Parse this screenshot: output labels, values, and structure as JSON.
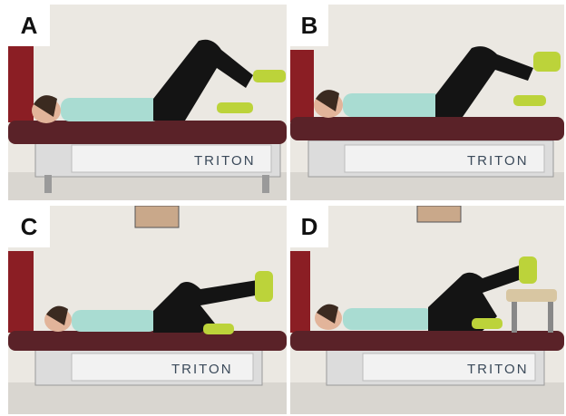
{
  "panels": [
    {
      "id": "A",
      "label": "A",
      "table_brand": "TRITON"
    },
    {
      "id": "B",
      "label": "B",
      "table_brand": "TRITON"
    },
    {
      "id": "C",
      "label": "C",
      "table_brand": "TRITON"
    },
    {
      "id": "D",
      "label": "D",
      "table_brand": "TRITON"
    }
  ],
  "colors": {
    "wall": "#ebe8e2",
    "table_pad": "#5a2228",
    "table_frame": "#dcdcdc",
    "shirt": "#a9dcd2",
    "leggings": "#141414",
    "shoe": "#bcd33a",
    "curtain": "#8b1e24"
  }
}
